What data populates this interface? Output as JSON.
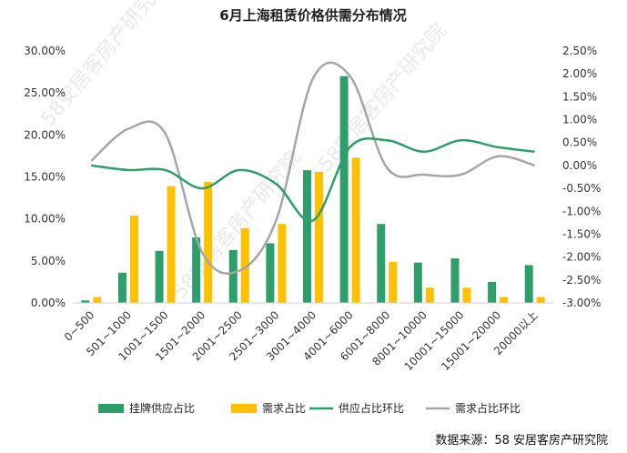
{
  "chart_data": {
    "type": "bar",
    "title": "6月上海租赁价格供需分布情况",
    "categories": [
      "0~500",
      "501~1000",
      "1001~1500",
      "1501~2000",
      "2001~2500",
      "2501~3000",
      "3001~4000",
      "4001~6000",
      "6001~8000",
      "8001~10000",
      "10001~15000",
      "15001~20000",
      "20000以上"
    ],
    "series": [
      {
        "name": "挂牌供应占比",
        "type": "bar",
        "axis": "left",
        "color": "#2e9e6b",
        "values": [
          0.3,
          3.6,
          6.2,
          7.8,
          6.3,
          7.1,
          15.8,
          27.0,
          9.4,
          4.8,
          5.3,
          2.5,
          4.5
        ]
      },
      {
        "name": "需求占比",
        "type": "bar",
        "axis": "left",
        "color": "#ffc000",
        "values": [
          0.7,
          10.4,
          13.9,
          14.4,
          8.9,
          9.4,
          15.6,
          17.3,
          4.9,
          1.8,
          1.8,
          0.7,
          0.7
        ]
      },
      {
        "name": "供应占比环比",
        "type": "line",
        "axis": "right",
        "color": "#2e9e6b",
        "values": [
          0.0,
          -0.1,
          -0.1,
          -0.5,
          -0.1,
          -0.4,
          -1.2,
          0.4,
          0.55,
          0.3,
          0.55,
          0.4,
          0.3
        ]
      },
      {
        "name": "需求占比环比",
        "type": "line",
        "axis": "right",
        "color": "#a6a6a6",
        "values": [
          0.1,
          0.8,
          0.7,
          -1.9,
          -2.3,
          -1.2,
          1.9,
          1.95,
          -0.05,
          -0.2,
          -0.2,
          0.2,
          0.0
        ]
      }
    ],
    "y_left": {
      "min": 0,
      "max": 30,
      "step": 5,
      "tick_labels": [
        "0.00%",
        "5.00%",
        "10.00%",
        "15.00%",
        "20.00%",
        "25.00%",
        "30.00%"
      ]
    },
    "y_right": {
      "min": -3,
      "max": 2.5,
      "step": 0.5,
      "tick_labels": [
        "-3.00%",
        "-2.50%",
        "-2.00%",
        "-1.50%",
        "-1.00%",
        "-0.50%",
        "0.00%",
        "0.50%",
        "1.00%",
        "1.50%",
        "2.00%",
        "2.50%"
      ]
    },
    "legend_position": "bottom",
    "grid": false
  },
  "source_note": "数据来源：58 安居客房产研究院",
  "watermarks": [
    "58安居客房产研究院",
    "58安居客房产研究院",
    "58安居客房产研究院"
  ]
}
